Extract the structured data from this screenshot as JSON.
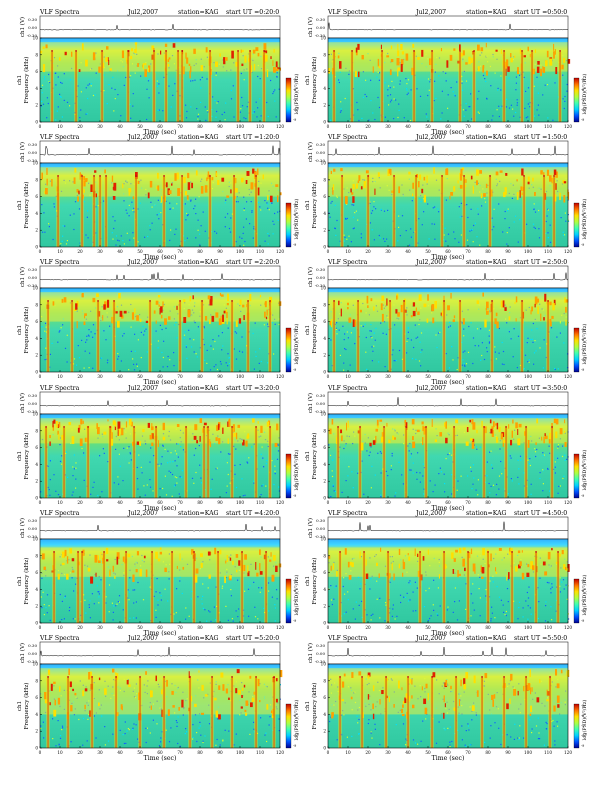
{
  "header_labels": {
    "title": "VLF Spectra",
    "station": "station=KAG",
    "time_axis_label": "Time (sec)",
    "freq_axis_label": "Frequency (kHz)",
    "channel_label": "ch1",
    "voltage_axis_label": "ch1 (V)",
    "colorbar_label": "log(PSD)(V²/Hz)"
  },
  "panels": [
    {
      "date": "Jul2,2007",
      "start": "start UT =0:20:0"
    },
    {
      "date": "Jul2,2007",
      "start": "start UT =0:50:0"
    },
    {
      "date": "Jul2,2007",
      "start": "start UT =1:20:0"
    },
    {
      "date": "Jul2,2007",
      "start": "start UT =1:50:0"
    },
    {
      "date": "Jul2,2007",
      "start": "start UT =2:20:0"
    },
    {
      "date": "Jul2,2007",
      "start": "start UT =2:50:0"
    },
    {
      "date": "Jul2,2007",
      "start": "start UT =3:20:0"
    },
    {
      "date": "Jul2,2007",
      "start": "start UT =3:50:0"
    },
    {
      "date": "Jul2,2007",
      "start": "start UT =4:20:0"
    },
    {
      "date": "Jul2,2007",
      "start": "start UT =4:50:0"
    },
    {
      "date": "Jul2,2007",
      "start": "start UT =5:20:0"
    },
    {
      "date": "Jul2,2007",
      "start": "start UT =5:50:0"
    }
  ],
  "chart_data": {
    "type": "heatmap",
    "xlim": [
      0,
      120
    ],
    "x_ticks": [
      0,
      10,
      20,
      30,
      40,
      50,
      60,
      70,
      80,
      90,
      100,
      110,
      120
    ],
    "ylim_freq_khz": [
      0,
      10
    ],
    "y_ticks": [
      0,
      2,
      4,
      6,
      8,
      10
    ],
    "voltage_ticks": [
      "0.30",
      "0.00",
      "-0.30"
    ],
    "colorscale": [
      "#00008f",
      "#0050ff",
      "#00d0ff",
      "#40ffb0",
      "#b0ff40",
      "#ffe000",
      "#ff7000",
      "#c00000"
    ],
    "colorbar_ticks": [
      "-5",
      "-6",
      "-7",
      "-8",
      "-9"
    ],
    "spectra": [
      {
        "bursts": [
          6,
          18,
          31,
          44,
          57,
          63,
          69,
          71,
          85,
          99,
          105,
          112
        ],
        "band": [
          6.0,
          9.5
        ]
      },
      {
        "bursts": [
          3,
          12,
          27,
          43,
          52,
          66,
          73,
          88,
          97,
          102,
          116
        ],
        "band": [
          6.0,
          9.5
        ]
      },
      {
        "bursts": [
          9,
          21,
          27,
          30,
          33,
          48,
          62,
          71,
          85,
          97,
          108
        ],
        "band": [
          6.0,
          9.5
        ]
      },
      {
        "bursts": [
          7,
          20,
          33,
          44,
          57,
          68,
          81,
          98,
          108,
          113
        ],
        "band": [
          6.0,
          9.5
        ]
      },
      {
        "bursts": [
          4,
          16,
          29,
          37,
          55,
          70,
          81,
          96,
          104,
          115
        ],
        "band": [
          6.0,
          9.5
        ]
      },
      {
        "bursts": [
          3,
          15,
          31,
          38,
          58,
          66,
          82,
          97,
          110
        ],
        "band": [
          6.0,
          9.5
        ]
      },
      {
        "bursts": [
          3,
          12,
          24,
          35,
          47,
          58,
          73,
          82,
          84,
          96,
          108,
          115
        ],
        "band": [
          6.5,
          9.5
        ]
      },
      {
        "bursts": [
          5,
          16,
          28,
          39,
          49,
          63,
          78,
          89,
          99,
          112
        ],
        "band": [
          6.5,
          9.5
        ]
      },
      {
        "bursts": [
          7,
          19,
          21,
          32,
          43,
          56,
          66,
          77,
          89,
          101,
          113
        ],
        "band": [
          5.5,
          9.0
        ]
      },
      {
        "bursts": [
          6,
          18,
          30,
          46,
          58,
          70,
          80,
          92,
          104,
          115
        ],
        "band": [
          5.5,
          9.0
        ]
      },
      {
        "bursts": [
          4,
          14,
          26,
          38,
          50,
          62,
          75,
          86,
          96,
          108,
          117
        ],
        "band": [
          4.0,
          9.5
        ]
      },
      {
        "bursts": [
          6,
          17,
          29,
          40,
          52,
          64,
          77,
          88,
          99,
          111
        ],
        "band": [
          4.0,
          9.5
        ]
      }
    ]
  }
}
